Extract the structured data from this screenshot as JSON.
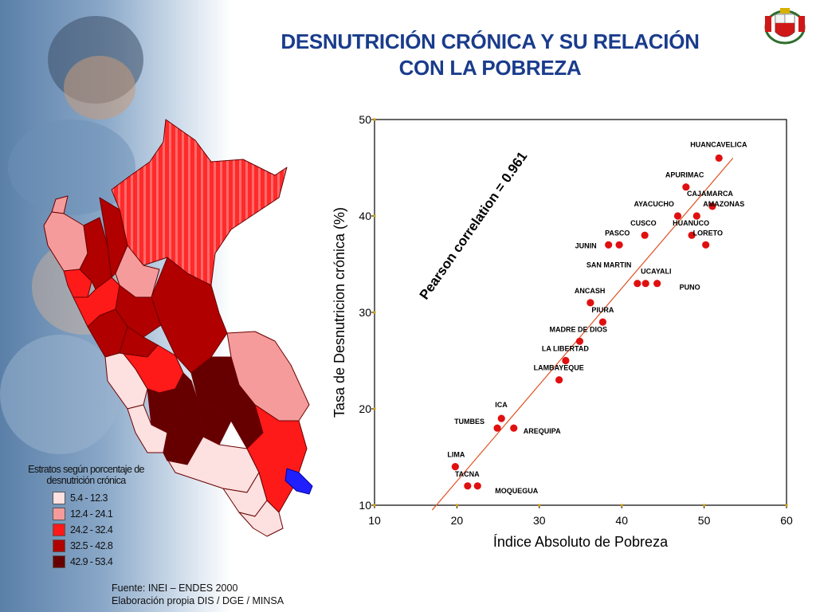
{
  "title": {
    "line1": "DESNUTRICIÓN CRÓNICA Y SU RELACIÓN",
    "line2": "CON LA POBREZA"
  },
  "map_legend": {
    "title_line1": "Estratos según porcentaje de",
    "title_line2": "desnutrición crónica",
    "items": [
      {
        "label": "5.4 - 12.3",
        "color": "#fde0e0"
      },
      {
        "label": "12.4 - 24.1",
        "color": "#f59b9b"
      },
      {
        "label": "24.2 - 32.4",
        "color": "#ff1a1a"
      },
      {
        "label": "32.5 - 42.8",
        "color": "#b00000"
      },
      {
        "label": "42.9 - 53.4",
        "color": "#660000"
      }
    ]
  },
  "source": {
    "line1": "Fuente: INEI – ENDES 2000",
    "line2": "Elaboración propia DIS / DGE / MINSA"
  },
  "chart_data": {
    "type": "scatter",
    "xlabel": "Índice Absoluto de Pobreza",
    "ylabel": "Tasa de Desnutricion crónica (%)",
    "xlim": [
      10,
      60
    ],
    "ylim": [
      10,
      50
    ],
    "xticks": [
      10,
      20,
      30,
      40,
      50,
      60
    ],
    "yticks": [
      10,
      20,
      30,
      40,
      50
    ],
    "annotation": "Pearson correlation = 0.961",
    "point_color": "#e01010",
    "line_color": "#e05020",
    "trendline": [
      [
        17,
        9.5
      ],
      [
        53.5,
        46
      ]
    ],
    "points": [
      {
        "x": 51.8,
        "y": 46,
        "label": "HUANCAVELICA"
      },
      {
        "x": 47.8,
        "y": 43,
        "label": "APURIMAC"
      },
      {
        "x": 51.0,
        "y": 41,
        "label": "CAJAMARCA"
      },
      {
        "x": 49.1,
        "y": 40,
        "label": "AMAZONAS"
      },
      {
        "x": 46.8,
        "y": 40,
        "label": "AYACUCHO"
      },
      {
        "x": 42.8,
        "y": 38,
        "label": "CUSCO"
      },
      {
        "x": 48.5,
        "y": 38,
        "label": "HUANUCO"
      },
      {
        "x": 50.2,
        "y": 37,
        "label": "LORETO"
      },
      {
        "x": 39.7,
        "y": 37,
        "label": "PASCO"
      },
      {
        "x": 38.4,
        "y": 37,
        "label": "JUNIN"
      },
      {
        "x": 41.9,
        "y": 33,
        "label": "SAN MARTIN"
      },
      {
        "x": 42.9,
        "y": 33,
        "label": "UCAYALI"
      },
      {
        "x": 44.3,
        "y": 33,
        "label": "PUNO"
      },
      {
        "x": 36.2,
        "y": 31,
        "label": "ANCASH"
      },
      {
        "x": 37.7,
        "y": 29,
        "label": "PIURA"
      },
      {
        "x": 34.9,
        "y": 27,
        "label": "MADRE DE DIOS"
      },
      {
        "x": 33.2,
        "y": 25,
        "label": "LA LIBERTAD"
      },
      {
        "x": 32.4,
        "y": 23,
        "label": "LAMBAYEQUE"
      },
      {
        "x": 25.4,
        "y": 19,
        "label": "ICA"
      },
      {
        "x": 24.9,
        "y": 18,
        "label": "TUMBES"
      },
      {
        "x": 26.9,
        "y": 18,
        "label": "AREQUIPA"
      },
      {
        "x": 19.8,
        "y": 14,
        "label": "LIMA"
      },
      {
        "x": 21.3,
        "y": 12,
        "label": "TACNA"
      },
      {
        "x": 22.5,
        "y": 12,
        "label": "MOQUEGUA"
      }
    ]
  }
}
